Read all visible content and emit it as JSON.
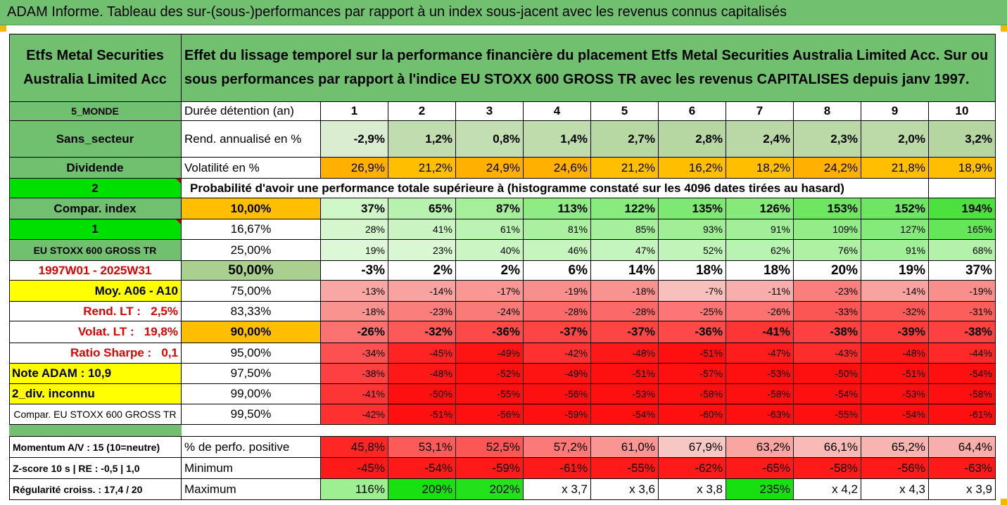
{
  "title": "ADAM Informe. Tableau des sur-(sous-)performances par rapport à un index sous-jacent avec les revenus connus capitalisés",
  "colors": {
    "header_green": "#70c070",
    "yellow": "#ffff00",
    "bright_green": "#00e000",
    "orange": "#ffbf00",
    "sage": "#a9d08e",
    "red_text": "#e00000"
  },
  "fund_name": "Etfs Metal Securities Australia Limited Acc",
  "description": "Effet du lissage temporel sur la performance financière du placement Etfs Metal Securities Australia Limited Acc. Sur ou sous performances par rapport à l'indice EU STOXX 600 GROSS TR avec les revenus CAPITALISES depuis janv 1997.",
  "left": {
    "region": "5_MONDE",
    "sector": "Sans_secteur",
    "dividend": "Dividende",
    "two": "2",
    "compar_index": "Compar. index",
    "one": "1",
    "index_name": "EU STOXX 600 GROSS TR",
    "period": "1997W01 - 2025W31",
    "moy": "Moy. A06 - A10",
    "rend_lt": "Rend. LT :   2,5%",
    "volat_lt": "Volat. LT :   19,8%",
    "sharpe": "Ratio Sharpe :   0,1",
    "note": "Note ADAM : 10,9",
    "div": "2_div. inconnu",
    "compar_long": "Compar. EU STOXX 600 GROSS TR",
    "momentum": "Momentum A/V : 15 (10=neutre)",
    "zscore": "Z-score 10 s  |  RE : -0,5  |  1,0",
    "regularite": "Régularité croiss. : 17,4 / 20"
  },
  "labels": {
    "duree": "Durée détention (an)",
    "rend": "Rend. annualisé en %",
    "vol": "Volatilité en %",
    "proba": "Probabilité d'avoir une performance totale supérieure à (histogramme constaté sur les 4096 dates tirées au hasard)",
    "pos": "% de perfo. positive",
    "min": "Minimum",
    "max": "Maximum"
  },
  "years": [
    "1",
    "2",
    "3",
    "4",
    "5",
    "6",
    "7",
    "8",
    "9",
    "10"
  ],
  "rend": [
    "-2,9%",
    "1,2%",
    "0,8%",
    "1,4%",
    "2,7%",
    "2,8%",
    "2,4%",
    "2,3%",
    "2,0%",
    "3,2%"
  ],
  "vol": [
    "26,9%",
    "21,2%",
    "24,9%",
    "24,6%",
    "21,2%",
    "16,2%",
    "18,2%",
    "24,2%",
    "21,8%",
    "18,9%"
  ],
  "percentiles": [
    {
      "p": "10,00%",
      "v": [
        "37%",
        "65%",
        "87%",
        "113%",
        "122%",
        "135%",
        "126%",
        "153%",
        "152%",
        "194%"
      ]
    },
    {
      "p": "16,67%",
      "v": [
        "28%",
        "41%",
        "61%",
        "81%",
        "85%",
        "93%",
        "91%",
        "109%",
        "127%",
        "165%"
      ]
    },
    {
      "p": "25,00%",
      "v": [
        "19%",
        "23%",
        "40%",
        "46%",
        "47%",
        "52%",
        "62%",
        "76%",
        "91%",
        "68%"
      ]
    },
    {
      "p": "50,00%",
      "v": [
        "-3%",
        "2%",
        "2%",
        "6%",
        "14%",
        "18%",
        "18%",
        "20%",
        "19%",
        "37%"
      ]
    },
    {
      "p": "75,00%",
      "v": [
        "-13%",
        "-14%",
        "-17%",
        "-19%",
        "-18%",
        "-7%",
        "-11%",
        "-23%",
        "-14%",
        "-19%"
      ]
    },
    {
      "p": "83,33%",
      "v": [
        "-18%",
        "-23%",
        "-24%",
        "-28%",
        "-28%",
        "-25%",
        "-26%",
        "-33%",
        "-32%",
        "-31%"
      ]
    },
    {
      "p": "90,00%",
      "v": [
        "-26%",
        "-32%",
        "-36%",
        "-37%",
        "-37%",
        "-36%",
        "-41%",
        "-38%",
        "-39%",
        "-38%"
      ]
    },
    {
      "p": "95,00%",
      "v": [
        "-34%",
        "-45%",
        "-49%",
        "-42%",
        "-48%",
        "-51%",
        "-47%",
        "-43%",
        "-48%",
        "-44%"
      ]
    },
    {
      "p": "97,50%",
      "v": [
        "-38%",
        "-48%",
        "-52%",
        "-49%",
        "-51%",
        "-57%",
        "-53%",
        "-50%",
        "-51%",
        "-54%"
      ]
    },
    {
      "p": "99,00%",
      "v": [
        "-41%",
        "-50%",
        "-55%",
        "-56%",
        "-53%",
        "-58%",
        "-58%",
        "-54%",
        "-53%",
        "-58%"
      ]
    },
    {
      "p": "99,50%",
      "v": [
        "-42%",
        "-51%",
        "-56%",
        "-59%",
        "-54%",
        "-60%",
        "-63%",
        "-55%",
        "-54%",
        "-61%"
      ]
    }
  ],
  "pos": [
    "45,8%",
    "53,1%",
    "52,5%",
    "57,2%",
    "61,0%",
    "67,9%",
    "63,2%",
    "66,1%",
    "65,2%",
    "64,4%"
  ],
  "min": [
    "-45%",
    "-54%",
    "-59%",
    "-61%",
    "-55%",
    "-62%",
    "-65%",
    "-58%",
    "-56%",
    "-63%"
  ],
  "max": [
    "116%",
    "209%",
    "202%",
    "x 3,7",
    "x 3,6",
    "x 3,8",
    "235%",
    "x 4,2",
    "x 4,3",
    "x 3,9"
  ]
}
